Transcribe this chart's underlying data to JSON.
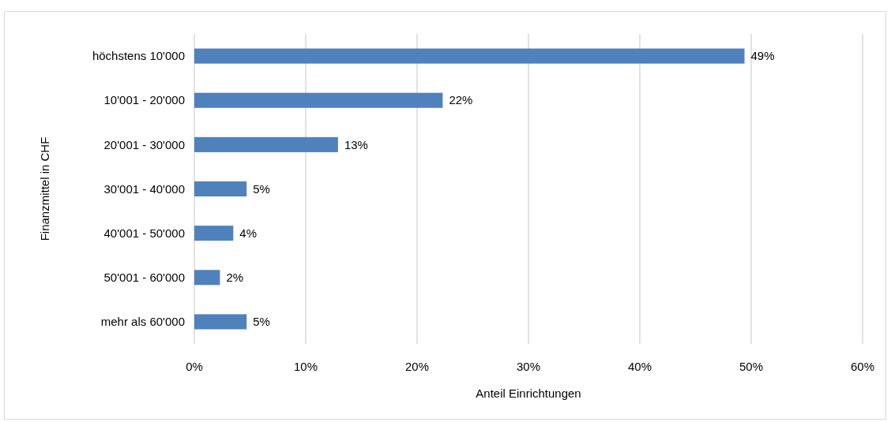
{
  "chart_data": {
    "type": "bar",
    "orientation": "horizontal",
    "xlabel": "Anteil Einrichtungen",
    "ylabel": "Finanzmittel in CHF",
    "categories": [
      "höchstens 10'000",
      "10'001 - 20'000",
      "20'001 - 30'000",
      "30'001 - 40'000",
      "40'001 - 50'000",
      "50'001 - 60'000",
      "mehr als 60'000"
    ],
    "values": [
      49.4,
      22.3,
      12.9,
      4.7,
      3.5,
      2.3,
      4.7
    ],
    "value_labels": [
      "49%",
      "22%",
      "13%",
      "5%",
      "4%",
      "2%",
      "5%"
    ],
    "color": "#4f81bd",
    "xlim": [
      0,
      60
    ],
    "xticks": [
      {
        "value": 0,
        "label": "0%"
      },
      {
        "value": 10,
        "label": "10%"
      },
      {
        "value": 20,
        "label": "20%"
      },
      {
        "value": 30,
        "label": "30%"
      },
      {
        "value": 40,
        "label": "40%"
      },
      {
        "value": 50,
        "label": "50%"
      },
      {
        "value": 60,
        "label": "60%"
      }
    ],
    "grid": "x"
  }
}
